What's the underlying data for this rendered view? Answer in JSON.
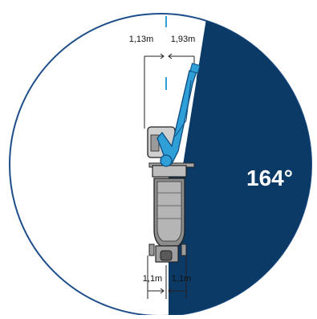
{
  "diagram": {
    "dimension_top_left": "1,13m",
    "dimension_top_right": "1,93m",
    "dimension_bottom_left": "1,1m",
    "dimension_bottom_right": "1,1m",
    "angle_label": "164°"
  },
  "colors": {
    "sector": "#0c3a66",
    "circle_outline": "#1e4e8a",
    "boom": "#2f9fd8",
    "boom_dark": "#1b78b5",
    "truck_body": "#bdbdbd",
    "truck_dark": "#7a7a7a",
    "outline": "#222222",
    "center_line": "#2f9fd8"
  },
  "icons": {
    "boom_pump_truck": "boom-pump-truck-icon",
    "reach_circle": "reach-circle-icon"
  }
}
